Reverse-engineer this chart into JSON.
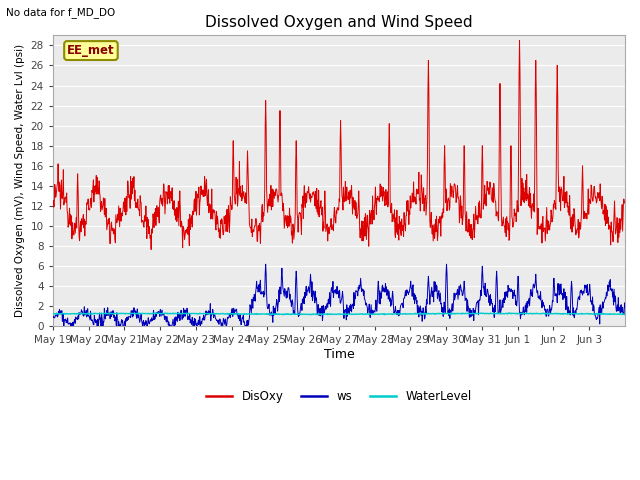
{
  "title": "Dissolved Oxygen and Wind Speed",
  "no_data_text": "No data for f_MD_DO",
  "station_label": "EE_met",
  "ylabel": "Dissolved Oxygen (mV), Wind Speed, Water Lvl (psi)",
  "xlabel": "Time",
  "ylim": [
    0,
    29
  ],
  "yticks": [
    0,
    2,
    4,
    6,
    8,
    10,
    12,
    14,
    16,
    18,
    20,
    22,
    24,
    26,
    28
  ],
  "plot_bg_color": "#ebebeb",
  "fig_bg_color": "#ffffff",
  "grid_color": "#ffffff",
  "disoxy_color": "#dd0000",
  "ws_color": "#0000bb",
  "waterlevel_color": "#00cccc",
  "x_labels": [
    "May 19",
    "May 20",
    "May 21",
    "May 22",
    "May 23",
    "May 24",
    "May 25",
    "May 26",
    "May 27",
    "May 28",
    "May 29",
    "May 30",
    "May 31",
    "Jun 1",
    "Jun 2",
    "Jun 3"
  ],
  "n_days": 16
}
